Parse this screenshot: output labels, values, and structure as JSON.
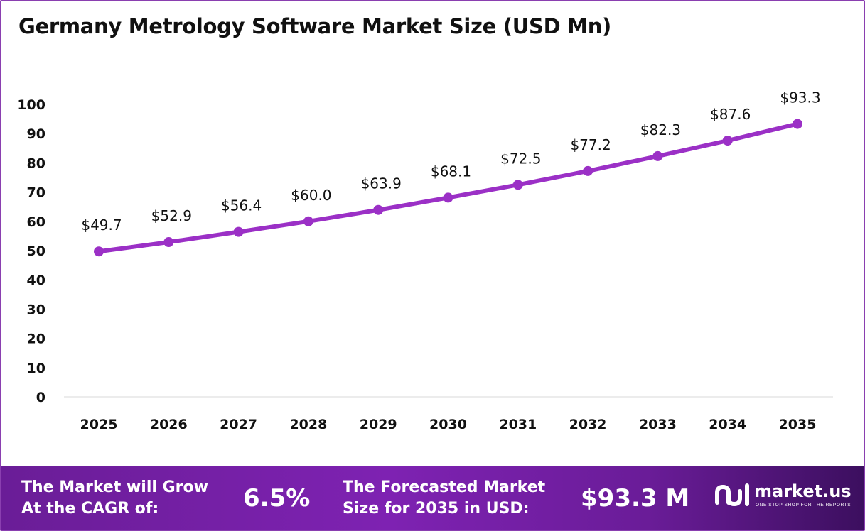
{
  "title": "Germany Metrology Software Market Size (USD Mn)",
  "chart_data": {
    "type": "line",
    "categories": [
      "2025",
      "2026",
      "2027",
      "2028",
      "2029",
      "2030",
      "2031",
      "2032",
      "2033",
      "2034",
      "2035"
    ],
    "series": [
      {
        "values": [
          49.7,
          52.9,
          56.4,
          60.0,
          63.9,
          68.1,
          72.5,
          77.2,
          82.3,
          87.6,
          93.3
        ]
      }
    ],
    "data_labels": [
      "$49.7",
      "$52.9",
      "$56.4",
      "$60.0",
      "$63.9",
      "$68.1",
      "$72.5",
      "$77.2",
      "$82.3",
      "$87.6",
      "$93.3"
    ],
    "y_ticks": [
      "0",
      "10",
      "20",
      "30",
      "40",
      "50",
      "60",
      "70",
      "80",
      "90",
      "100"
    ],
    "ylim": [
      0,
      100
    ],
    "xlabel": "",
    "ylabel": "",
    "grid": false,
    "line_color": "#9b30c6"
  },
  "footer": {
    "cagr_text": "The Market will Grow\nAt the CAGR of:",
    "cagr_value": "6.5%",
    "forecast_text": "The Forecasted Market\nSize for 2035 in USD:",
    "forecast_value": "$93.3 M",
    "logo_name": "market.us",
    "logo_tagline": "ONE STOP SHOP FOR THE REPORTS"
  }
}
